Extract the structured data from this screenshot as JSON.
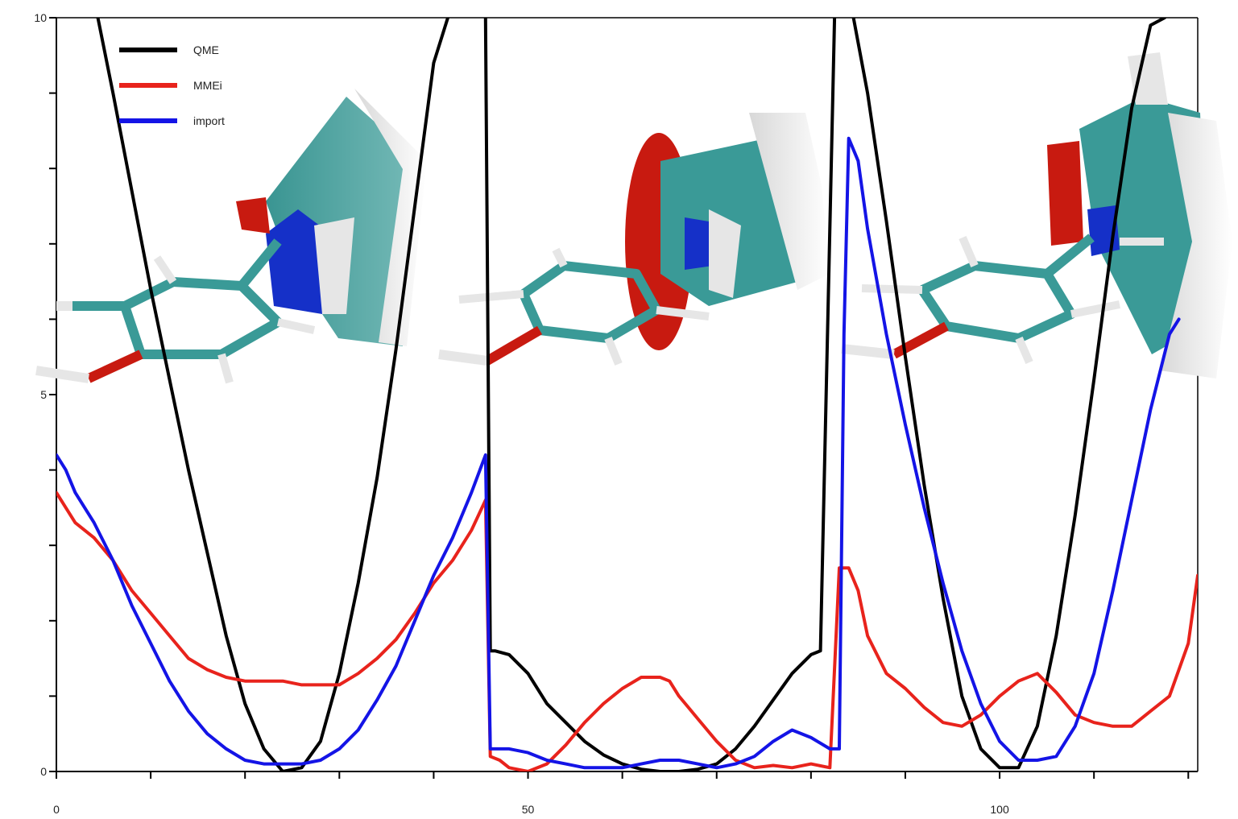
{
  "chart_data": {
    "type": "line",
    "title": "",
    "xlabel": "",
    "ylabel": "",
    "xlim": [
      0,
      121
    ],
    "ylim": [
      0,
      10
    ],
    "grid": false,
    "legend_position": "top-left",
    "x_ticks": [
      "0",
      "50",
      "100"
    ],
    "x_tick_values": [
      0,
      50,
      100
    ],
    "x_minor_ticks": [
      0,
      10,
      20,
      30,
      40,
      50,
      60,
      70,
      80,
      90,
      100,
      110,
      120
    ],
    "y_ticks": [
      "0",
      "5",
      "10"
    ],
    "y_tick_values": [
      0,
      5,
      10
    ],
    "y_minor_ticks": [
      0,
      1,
      2,
      3,
      4,
      5,
      6,
      7,
      8,
      9,
      10
    ],
    "series": [
      {
        "name": "QME",
        "color": "#000000",
        "x": [
          4.4,
          6,
          8,
          10,
          12,
          14,
          16,
          18,
          20,
          22,
          24,
          26,
          28,
          30,
          32,
          34,
          36,
          38,
          40,
          41.5,
          null,
          45.5,
          46,
          46.5,
          48,
          50,
          52,
          54,
          56,
          58,
          60,
          62,
          64,
          66,
          68,
          70,
          72,
          74,
          76,
          78,
          80,
          81,
          82.5,
          null,
          84.5,
          86,
          88,
          90,
          92,
          94,
          96,
          98,
          100,
          102,
          104,
          106,
          108,
          110,
          112,
          114,
          116,
          117.5
        ],
        "values": [
          10,
          9.0,
          7.7,
          6.4,
          5.2,
          4.0,
          2.9,
          1.8,
          0.9,
          0.3,
          0.0,
          0.05,
          0.4,
          1.3,
          2.5,
          3.9,
          5.6,
          7.5,
          9.4,
          10,
          null,
          10,
          1.6,
          1.6,
          1.55,
          1.3,
          0.9,
          0.65,
          0.4,
          0.22,
          0.1,
          0.03,
          0.0,
          0.0,
          0.03,
          0.1,
          0.3,
          0.6,
          0.95,
          1.3,
          1.55,
          1.6,
          10,
          null,
          10,
          9.0,
          7.3,
          5.5,
          3.8,
          2.3,
          1.0,
          0.3,
          0.05,
          0.05,
          0.6,
          1.8,
          3.4,
          5.2,
          7.1,
          8.8,
          9.9,
          10
        ]
      },
      {
        "name": "MMEi",
        "color": "#e8231c",
        "x": [
          0,
          1,
          2,
          4,
          6,
          8,
          10,
          12,
          14,
          16,
          18,
          20,
          22,
          24,
          26,
          28,
          30,
          32,
          34,
          36,
          38,
          40,
          42,
          44,
          45.5,
          46,
          47,
          48,
          50,
          52,
          54,
          56,
          58,
          60,
          62,
          64,
          65,
          66,
          67,
          68,
          70,
          72,
          74,
          76,
          78,
          80,
          82,
          83,
          84,
          85,
          86,
          88,
          90,
          92,
          94,
          96,
          98,
          100,
          102,
          104,
          106,
          108,
          110,
          112,
          114,
          116,
          118,
          120,
          121
        ],
        "values": [
          3.7,
          3.5,
          3.3,
          3.1,
          2.8,
          2.4,
          2.1,
          1.8,
          1.5,
          1.35,
          1.25,
          1.2,
          1.2,
          1.2,
          1.15,
          1.15,
          1.15,
          1.3,
          1.5,
          1.75,
          2.1,
          2.5,
          2.8,
          3.2,
          3.6,
          0.2,
          0.15,
          0.05,
          0.0,
          0.1,
          0.35,
          0.65,
          0.9,
          1.1,
          1.25,
          1.25,
          1.2,
          1.0,
          0.85,
          0.7,
          0.4,
          0.15,
          0.05,
          0.08,
          0.05,
          0.1,
          0.05,
          2.7,
          2.7,
          2.4,
          1.8,
          1.3,
          1.1,
          0.85,
          0.65,
          0.6,
          0.75,
          1.0,
          1.2,
          1.3,
          1.05,
          0.75,
          0.65,
          0.6,
          0.6,
          0.8,
          1.0,
          1.7,
          2.6
        ]
      },
      {
        "name": "import",
        "color": "#1414e6",
        "x": [
          0,
          1,
          2,
          4,
          6,
          8,
          10,
          12,
          14,
          16,
          18,
          20,
          22,
          24,
          26,
          28,
          30,
          32,
          34,
          36,
          38,
          40,
          42,
          44,
          45.5,
          46,
          47,
          48,
          50,
          52,
          54,
          56,
          58,
          60,
          62,
          64,
          66,
          68,
          70,
          72,
          74,
          76,
          78,
          80,
          82,
          83,
          83.5,
          84,
          85,
          86,
          88,
          90,
          92,
          94,
          96,
          98,
          100,
          102,
          104,
          106,
          108,
          110,
          112,
          114,
          116,
          118,
          119
        ],
        "values": [
          4.2,
          4.0,
          3.7,
          3.3,
          2.8,
          2.2,
          1.7,
          1.2,
          0.8,
          0.5,
          0.3,
          0.15,
          0.1,
          0.1,
          0.1,
          0.15,
          0.3,
          0.55,
          0.95,
          1.4,
          2.0,
          2.6,
          3.1,
          3.7,
          4.2,
          0.3,
          0.3,
          0.3,
          0.25,
          0.15,
          0.1,
          0.05,
          0.05,
          0.05,
          0.1,
          0.15,
          0.15,
          0.1,
          0.05,
          0.1,
          0.2,
          0.4,
          0.55,
          0.45,
          0.3,
          0.3,
          5.8,
          8.4,
          8.1,
          7.2,
          5.8,
          4.6,
          3.5,
          2.5,
          1.6,
          0.9,
          0.4,
          0.15,
          0.15,
          0.2,
          0.6,
          1.3,
          2.4,
          3.6,
          4.8,
          5.8,
          6.0
        ]
      }
    ],
    "legend": {
      "entries": [
        "QME",
        "MMEi",
        "import"
      ]
    }
  }
}
